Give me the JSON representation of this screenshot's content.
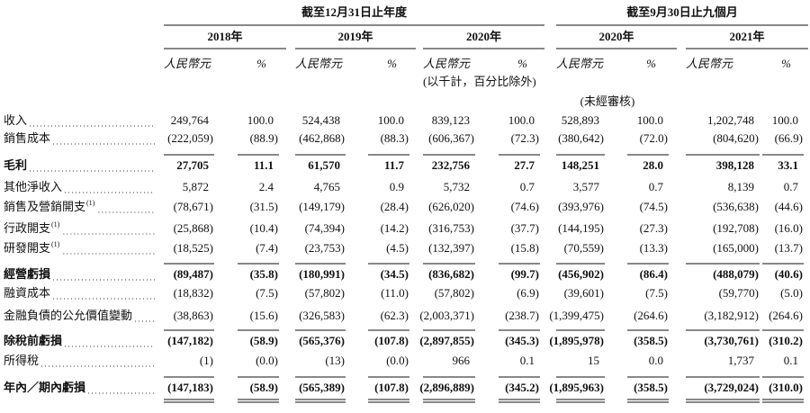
{
  "table": {
    "period_groups": [
      {
        "label": "截至12月31日止年度",
        "columns": [
          0,
          1,
          2
        ]
      },
      {
        "label": "截至9月30日止九個月",
        "columns": [
          3,
          4
        ]
      }
    ],
    "columns": [
      {
        "year": "2018年",
        "currency": "人民幣元",
        "pct": "%"
      },
      {
        "year": "2019年",
        "currency": "人民幣元",
        "pct": "%"
      },
      {
        "year": "2020年",
        "currency": "人民幣元",
        "pct": "%",
        "note": "(以千計，百分比除外)"
      },
      {
        "year": "2020年",
        "currency": "人民幣元",
        "pct": "%",
        "note": "(未經審核)"
      },
      {
        "year": "2021年",
        "currency": "人民幣元",
        "pct": "%"
      }
    ],
    "rows": [
      {
        "label": "收入",
        "cells": [
          "249,764",
          "100.0",
          "524,438",
          "100.0",
          "839,123",
          "100.0",
          "528,893",
          "100.0",
          "1,202,748",
          "100.0"
        ]
      },
      {
        "label": "銷售成本",
        "cells": [
          "(222,059)",
          "(88.9)",
          "(462,868)",
          "(88.3)",
          "(606,367)",
          "(72.3)",
          "(380,642)",
          "(72.0)",
          "(804,620)",
          "(66.9)"
        ]
      },
      {
        "label": "毛利",
        "bold": true,
        "cells": [
          "27,705",
          "11.1",
          "61,570",
          "11.7",
          "232,756",
          "27.7",
          "148,251",
          "28.0",
          "398,128",
          "33.1"
        ]
      },
      {
        "label": "其他淨收入",
        "cells": [
          "5,872",
          "2.4",
          "4,765",
          "0.9",
          "5,732",
          "0.7",
          "3,577",
          "0.7",
          "8,139",
          "0.7"
        ]
      },
      {
        "label": "銷售及營銷開支",
        "note": "(1)",
        "cells": [
          "(78,671)",
          "(31.5)",
          "(149,179)",
          "(28.4)",
          "(626,020)",
          "(74.6)",
          "(393,976)",
          "(74.5)",
          "(536,638)",
          "(44.6)"
        ]
      },
      {
        "label": "行政開支",
        "note": "(1)",
        "cells": [
          "(25,868)",
          "(10.4)",
          "(74,394)",
          "(14.2)",
          "(316,753)",
          "(37.7)",
          "(144,195)",
          "(27.3)",
          "(192,708)",
          "(16.0)"
        ]
      },
      {
        "label": "研發開支",
        "note": "(1)",
        "cells": [
          "(18,525)",
          "(7.4)",
          "(23,753)",
          "(4.5)",
          "(132,397)",
          "(15.8)",
          "(70,559)",
          "(13.3)",
          "(165,000)",
          "(13.7)"
        ]
      },
      {
        "label": "經營虧損",
        "bold": true,
        "cells": [
          "(89,487)",
          "(35.8)",
          "(180,991)",
          "(34.5)",
          "(836,682)",
          "(99.7)",
          "(456,902)",
          "(86.4)",
          "(488,079)",
          "(40.6)"
        ]
      },
      {
        "label": "融資成本",
        "cells": [
          "(18,832)",
          "(7.5)",
          "(57,802)",
          "(11.0)",
          "(57,802)",
          "(6.9)",
          "(39,601)",
          "(7.5)",
          "(59,770)",
          "(5.0)"
        ]
      },
      {
        "label": "金融負債的公允價值變動",
        "cells": [
          "(38,863)",
          "(15.6)",
          "(326,583)",
          "(62.3)",
          "(2,003,371)",
          "(238.7)",
          "(1,399,475)",
          "(264.6)",
          "(3,182,912)",
          "(264.6)"
        ]
      },
      {
        "label": "除稅前虧損",
        "bold": true,
        "cells": [
          "(147,182)",
          "(58.9)",
          "(565,376)",
          "(107.8)",
          "(2,897,855)",
          "(345.3)",
          "(1,895,978)",
          "(358.5)",
          "(3,730,761)",
          "(310.2)"
        ]
      },
      {
        "label": "所得稅",
        "cells": [
          "(1)",
          "(0.0)",
          "(13)",
          "(0.0)",
          "966",
          "0.1",
          "15",
          "0.0",
          "1,737",
          "0.1"
        ]
      },
      {
        "label": "年內／期內虧損",
        "bold": true,
        "cells": [
          "(147,183)",
          "(58.9)",
          "(565,389)",
          "(107.8)",
          "(2,896,889)",
          "(345.2)",
          "(1,895,963)",
          "(358.5)",
          "(3,729,024)",
          "(310.0)"
        ]
      }
    ]
  }
}
